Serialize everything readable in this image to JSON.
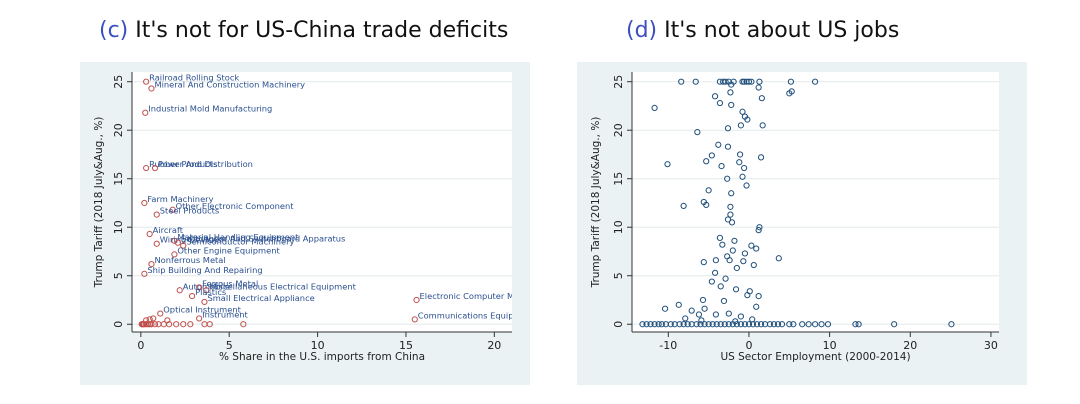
{
  "titles": {
    "c": {
      "tag": "(c)",
      "text": "It's not for US-China trade deficits"
    },
    "d": {
      "tag": "(d)",
      "text": "It's not about US jobs"
    }
  },
  "colors": {
    "panel_bg": "#eaf2f3",
    "marker_c": "#c0504d",
    "marker_d": "#1f4e79",
    "label_c": "#2a4f8f",
    "title_tag": "#3b4fc4"
  },
  "chart_data": [
    {
      "type": "scatter",
      "id": "c",
      "xlabel": "% Share in the U.S. imports from China",
      "ylabel": "Trump Tariff (2018 July&Aug., %)",
      "xlim": [
        -0.5,
        21
      ],
      "ylim": [
        -0.8,
        26
      ],
      "xticks": [
        0,
        5,
        10,
        15,
        20
      ],
      "yticks": [
        0,
        5,
        10,
        15,
        20,
        25
      ],
      "grid": true,
      "points": [
        {
          "x": 0.3,
          "y": 25,
          "label": "Railroad Rolling Stock"
        },
        {
          "x": 0.6,
          "y": 24.3,
          "label": "Mineral And Construction Machinery"
        },
        {
          "x": 0.25,
          "y": 21.8,
          "label": "Industrial Mold Manufacturing"
        },
        {
          "x": 0.3,
          "y": 16.1,
          "label": "Rubber Products"
        },
        {
          "x": 0.8,
          "y": 16.1,
          "label": "Power And Distribution"
        },
        {
          "x": 0.2,
          "y": 12.5,
          "label": "Farm Machinery"
        },
        {
          "x": 1.8,
          "y": 11.8,
          "label": "Other Electronic Component"
        },
        {
          "x": 0.9,
          "y": 11.3,
          "label": "Steel Products"
        },
        {
          "x": 0.5,
          "y": 9.3,
          "label": "Aircraft"
        },
        {
          "x": 1.9,
          "y": 8.6,
          "label": "Material Handling Equipment"
        },
        {
          "x": 0.9,
          "y": 8.3,
          "label": "Wiring Devices"
        },
        {
          "x": 2.1,
          "y": 8.4,
          "label": "Switchgear And Switchboard Apparatus"
        },
        {
          "x": 2.4,
          "y": 8.1,
          "label": "Semiconductor Machinery"
        },
        {
          "x": 1.9,
          "y": 7.2,
          "label": "Other Engine Equipment"
        },
        {
          "x": 0.6,
          "y": 6.2,
          "label": "Nonferrous Metal"
        },
        {
          "x": 0.2,
          "y": 5.2,
          "label": "Ship Building And Repairing"
        },
        {
          "x": 2.2,
          "y": 3.5,
          "label": "Automobile"
        },
        {
          "x": 3.3,
          "y": 3.8,
          "label": "Ferrous Metal"
        },
        {
          "x": 3.7,
          "y": 3.5,
          "label": "Miscellaneous Electrical Equipment"
        },
        {
          "x": 2.9,
          "y": 2.9,
          "label": "Plastics"
        },
        {
          "x": 3.6,
          "y": 2.3,
          "label": "Small Electrical Appliance"
        },
        {
          "x": 15.6,
          "y": 2.5,
          "label": "Electronic Computer Manufacturing"
        },
        {
          "x": 1.1,
          "y": 1.1,
          "label": "Optical Instrument"
        },
        {
          "x": 15.5,
          "y": 0.5,
          "label": "Communications Equipment"
        },
        {
          "x": 3.3,
          "y": 0.6,
          "label": "Instrument"
        },
        {
          "x": 0.05,
          "y": 0
        },
        {
          "x": 0.1,
          "y": 0
        },
        {
          "x": 0.15,
          "y": 0
        },
        {
          "x": 0.2,
          "y": 0
        },
        {
          "x": 0.3,
          "y": 0
        },
        {
          "x": 0.4,
          "y": 0
        },
        {
          "x": 0.5,
          "y": 0
        },
        {
          "x": 0.6,
          "y": 0
        },
        {
          "x": 0.8,
          "y": 0
        },
        {
          "x": 1.0,
          "y": 0
        },
        {
          "x": 1.3,
          "y": 0
        },
        {
          "x": 1.6,
          "y": 0
        },
        {
          "x": 2.0,
          "y": 0
        },
        {
          "x": 2.4,
          "y": 0
        },
        {
          "x": 2.8,
          "y": 0
        },
        {
          "x": 3.6,
          "y": 0
        },
        {
          "x": 3.9,
          "y": 0
        },
        {
          "x": 5.8,
          "y": 0
        },
        {
          "x": 0.3,
          "y": 0.4
        },
        {
          "x": 0.5,
          "y": 0.5
        },
        {
          "x": 0.7,
          "y": 0.6
        },
        {
          "x": 1.5,
          "y": 0.4
        }
      ]
    },
    {
      "type": "scatter",
      "id": "d",
      "xlabel": "US Sector Employment (2000-2014)",
      "ylabel": "Trump Tariff (2018 July&Aug., %)",
      "xlim": [
        -14.5,
        31
      ],
      "ylim": [
        -0.8,
        26
      ],
      "xticks": [
        -10,
        0,
        10,
        20,
        30
      ],
      "yticks": [
        0,
        5,
        10,
        15,
        20,
        25
      ],
      "grid": true,
      "points": [
        {
          "x": -8.4,
          "y": 25
        },
        {
          "x": -6.6,
          "y": 25
        },
        {
          "x": -3.6,
          "y": 25
        },
        {
          "x": -3.2,
          "y": 25
        },
        {
          "x": -2.9,
          "y": 25
        },
        {
          "x": -2.5,
          "y": 25
        },
        {
          "x": -1.9,
          "y": 25
        },
        {
          "x": -0.8,
          "y": 25
        },
        {
          "x": -0.6,
          "y": 25
        },
        {
          "x": -0.3,
          "y": 25
        },
        {
          "x": 0.0,
          "y": 25
        },
        {
          "x": 0.3,
          "y": 25
        },
        {
          "x": 1.3,
          "y": 25
        },
        {
          "x": 5.2,
          "y": 25
        },
        {
          "x": 8.2,
          "y": 25
        },
        {
          "x": -2.2,
          "y": 24.7
        },
        {
          "x": 1.2,
          "y": 24.4
        },
        {
          "x": 5.3,
          "y": 24
        },
        {
          "x": 5.0,
          "y": 23.8
        },
        {
          "x": -4.2,
          "y": 23.5
        },
        {
          "x": -2.3,
          "y": 23.9
        },
        {
          "x": -3.6,
          "y": 22.8
        },
        {
          "x": -2.2,
          "y": 22.6
        },
        {
          "x": 1.6,
          "y": 23.3
        },
        {
          "x": -11.7,
          "y": 22.3
        },
        {
          "x": -0.8,
          "y": 21.9
        },
        {
          "x": -0.5,
          "y": 21.4
        },
        {
          "x": -0.2,
          "y": 21.1
        },
        {
          "x": -1.0,
          "y": 20.5
        },
        {
          "x": -2.6,
          "y": 20.2
        },
        {
          "x": 1.7,
          "y": 20.5
        },
        {
          "x": -6.4,
          "y": 19.8
        },
        {
          "x": -3.8,
          "y": 18.5
        },
        {
          "x": -2.6,
          "y": 18.3
        },
        {
          "x": -1.1,
          "y": 17.5
        },
        {
          "x": 1.5,
          "y": 17.2
        },
        {
          "x": -4.6,
          "y": 17.4
        },
        {
          "x": -5.3,
          "y": 16.8
        },
        {
          "x": -10.1,
          "y": 16.5
        },
        {
          "x": -3.4,
          "y": 16.3
        },
        {
          "x": -0.6,
          "y": 16.1
        },
        {
          "x": -1.2,
          "y": 16.7
        },
        {
          "x": -0.8,
          "y": 15.2
        },
        {
          "x": -2.7,
          "y": 15.0
        },
        {
          "x": -0.3,
          "y": 14.3
        },
        {
          "x": -5.0,
          "y": 13.8
        },
        {
          "x": -2.2,
          "y": 13.5
        },
        {
          "x": -5.6,
          "y": 12.6
        },
        {
          "x": -5.3,
          "y": 12.3
        },
        {
          "x": -8.1,
          "y": 12.2
        },
        {
          "x": -2.3,
          "y": 12.1
        },
        {
          "x": -2.3,
          "y": 11.3
        },
        {
          "x": -2.6,
          "y": 10.8
        },
        {
          "x": -2.1,
          "y": 10.5
        },
        {
          "x": 1.3,
          "y": 10.0
        },
        {
          "x": 1.2,
          "y": 9.7
        },
        {
          "x": -3.6,
          "y": 8.9
        },
        {
          "x": -1.8,
          "y": 8.6
        },
        {
          "x": -3.3,
          "y": 8.2
        },
        {
          "x": 0.3,
          "y": 8.1
        },
        {
          "x": 0.9,
          "y": 7.8
        },
        {
          "x": -2.0,
          "y": 7.6
        },
        {
          "x": -0.5,
          "y": 7.3
        },
        {
          "x": -2.7,
          "y": 7.0
        },
        {
          "x": 3.7,
          "y": 6.8
        },
        {
          "x": -4.1,
          "y": 6.6
        },
        {
          "x": -5.6,
          "y": 6.4
        },
        {
          "x": -2.4,
          "y": 6.6
        },
        {
          "x": -0.7,
          "y": 6.5
        },
        {
          "x": 0.6,
          "y": 6.1
        },
        {
          "x": -1.5,
          "y": 5.8
        },
        {
          "x": -4.2,
          "y": 5.3
        },
        {
          "x": -2.9,
          "y": 4.7
        },
        {
          "x": -4.6,
          "y": 4.4
        },
        {
          "x": -3.5,
          "y": 3.9
        },
        {
          "x": -1.6,
          "y": 3.6
        },
        {
          "x": 0.1,
          "y": 3.4
        },
        {
          "x": -0.2,
          "y": 3.0
        },
        {
          "x": 1.2,
          "y": 2.9
        },
        {
          "x": -5.7,
          "y": 2.5
        },
        {
          "x": -8.7,
          "y": 2.0
        },
        {
          "x": -3.1,
          "y": 2.4
        },
        {
          "x": 0.9,
          "y": 1.8
        },
        {
          "x": -5.5,
          "y": 1.6
        },
        {
          "x": -2.5,
          "y": 1.1
        },
        {
          "x": -7.1,
          "y": 1.4
        },
        {
          "x": -10.4,
          "y": 1.6
        },
        {
          "x": -6.2,
          "y": 1.0
        },
        {
          "x": -4.1,
          "y": 1.0
        },
        {
          "x": -1.0,
          "y": 0.8
        },
        {
          "x": 0.4,
          "y": 0.5
        },
        {
          "x": -7.9,
          "y": 0.6
        },
        {
          "x": -5.9,
          "y": 0.4
        },
        {
          "x": -1.7,
          "y": 0.3
        },
        {
          "x": -13.2,
          "y": 0
        },
        {
          "x": -12.7,
          "y": 0
        },
        {
          "x": -12.2,
          "y": 0
        },
        {
          "x": -11.7,
          "y": 0
        },
        {
          "x": -11.2,
          "y": 0
        },
        {
          "x": -10.8,
          "y": 0
        },
        {
          "x": -10.3,
          "y": 0
        },
        {
          "x": -9.7,
          "y": 0
        },
        {
          "x": -9.2,
          "y": 0
        },
        {
          "x": -8.6,
          "y": 0
        },
        {
          "x": -8.1,
          "y": 0
        },
        {
          "x": -7.6,
          "y": 0
        },
        {
          "x": -7.1,
          "y": 0
        },
        {
          "x": -6.5,
          "y": 0
        },
        {
          "x": -6.0,
          "y": 0
        },
        {
          "x": -5.5,
          "y": 0
        },
        {
          "x": -5.0,
          "y": 0
        },
        {
          "x": -4.5,
          "y": 0
        },
        {
          "x": -4.0,
          "y": 0
        },
        {
          "x": -3.5,
          "y": 0
        },
        {
          "x": -3.0,
          "y": 0
        },
        {
          "x": -2.5,
          "y": 0
        },
        {
          "x": -2.0,
          "y": 0
        },
        {
          "x": -1.5,
          "y": 0
        },
        {
          "x": -1.0,
          "y": 0
        },
        {
          "x": -0.5,
          "y": 0
        },
        {
          "x": 0.0,
          "y": 0
        },
        {
          "x": 0.5,
          "y": 0
        },
        {
          "x": 1.0,
          "y": 0
        },
        {
          "x": 1.5,
          "y": 0
        },
        {
          "x": 2.0,
          "y": 0
        },
        {
          "x": 2.6,
          "y": 0
        },
        {
          "x": 3.1,
          "y": 0
        },
        {
          "x": 3.6,
          "y": 0
        },
        {
          "x": 4.1,
          "y": 0
        },
        {
          "x": 5.0,
          "y": 0
        },
        {
          "x": 5.5,
          "y": 0
        },
        {
          "x": 6.6,
          "y": 0
        },
        {
          "x": 7.4,
          "y": 0
        },
        {
          "x": 8.2,
          "y": 0
        },
        {
          "x": 9.0,
          "y": 0
        },
        {
          "x": 9.8,
          "y": 0
        },
        {
          "x": 13.2,
          "y": 0
        },
        {
          "x": 13.6,
          "y": 0
        },
        {
          "x": 18.0,
          "y": 0
        },
        {
          "x": 25.1,
          "y": 0
        }
      ]
    }
  ]
}
